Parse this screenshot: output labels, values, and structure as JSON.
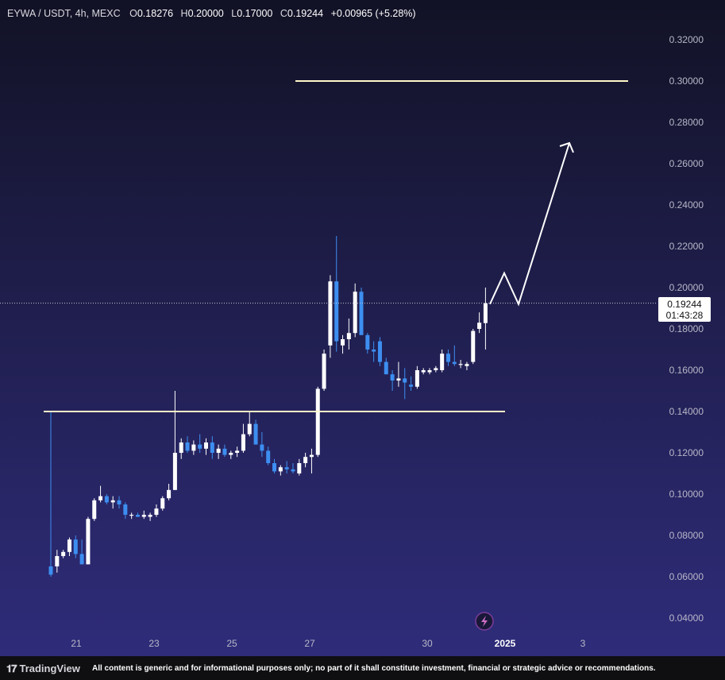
{
  "header": {
    "symbol": "EYWA / USDT, 4h, MEXC",
    "open_label": "O",
    "open": "0.18276",
    "high_label": "H",
    "high": "0.20000",
    "low_label": "L",
    "low": "0.17000",
    "close_label": "C",
    "close": "0.19244",
    "change": "+0.00965 (+5.28%)"
  },
  "price_tag": {
    "price": "0.19244",
    "countdown": "01:43:28"
  },
  "footer": {
    "logo": "TradingView",
    "disclaimer": "All content is generic and for informational purposes only; no part of it shall constitute investment, financial or strategic advice or recommendations."
  },
  "colors": {
    "up": "#ffffff",
    "down": "#3d8ef0",
    "line": "#fff7c8",
    "bg_top": "#121226",
    "bg_bottom": "#2f2c7a"
  },
  "chart_data": {
    "type": "candlestick",
    "y_ticks": [
      "0.32000",
      "0.30000",
      "0.28000",
      "0.26000",
      "0.24000",
      "0.22000",
      "0.20000",
      "0.18000",
      "0.16000",
      "0.14000",
      "0.12000",
      "0.10000",
      "0.08000",
      "0.06000",
      "0.04000"
    ],
    "ylim": [
      0.04,
      0.32
    ],
    "x_ticks": [
      "21",
      "23",
      "25",
      "27",
      "30",
      "2025",
      "3"
    ],
    "last_price": 0.19244,
    "annotations": {
      "resistance_level": 0.3,
      "support_level": 0.14,
      "projection_path": [
        [
          0.192,
          0.192
        ],
        [
          0.207,
          0.207
        ],
        [
          0.192,
          0.192
        ],
        [
          0.27,
          0.27
        ]
      ]
    },
    "candles": [
      {
        "o": 0.065,
        "h": 0.14,
        "l": 0.06,
        "c": 0.061
      },
      {
        "o": 0.065,
        "h": 0.073,
        "l": 0.062,
        "c": 0.07
      },
      {
        "o": 0.07,
        "h": 0.073,
        "l": 0.069,
        "c": 0.072
      },
      {
        "o": 0.072,
        "h": 0.079,
        "l": 0.07,
        "c": 0.078
      },
      {
        "o": 0.078,
        "h": 0.08,
        "l": 0.069,
        "c": 0.071
      },
      {
        "o": 0.071,
        "h": 0.078,
        "l": 0.066,
        "c": 0.066
      },
      {
        "o": 0.066,
        "h": 0.089,
        "l": 0.066,
        "c": 0.088
      },
      {
        "o": 0.088,
        "h": 0.098,
        "l": 0.087,
        "c": 0.097
      },
      {
        "o": 0.097,
        "h": 0.104,
        "l": 0.096,
        "c": 0.099
      },
      {
        "o": 0.099,
        "h": 0.1,
        "l": 0.095,
        "c": 0.096
      },
      {
        "o": 0.096,
        "h": 0.099,
        "l": 0.093,
        "c": 0.097
      },
      {
        "o": 0.097,
        "h": 0.099,
        "l": 0.093,
        "c": 0.095
      },
      {
        "o": 0.095,
        "h": 0.096,
        "l": 0.088,
        "c": 0.09
      },
      {
        "o": 0.09,
        "h": 0.091,
        "l": 0.088,
        "c": 0.09
      },
      {
        "o": 0.09,
        "h": 0.091,
        "l": 0.089,
        "c": 0.089
      },
      {
        "o": 0.089,
        "h": 0.092,
        "l": 0.088,
        "c": 0.09
      },
      {
        "o": 0.089,
        "h": 0.091,
        "l": 0.087,
        "c": 0.09
      },
      {
        "o": 0.09,
        "h": 0.095,
        "l": 0.089,
        "c": 0.093
      },
      {
        "o": 0.093,
        "h": 0.099,
        "l": 0.092,
        "c": 0.098
      },
      {
        "o": 0.098,
        "h": 0.105,
        "l": 0.097,
        "c": 0.102
      },
      {
        "o": 0.102,
        "h": 0.15,
        "l": 0.102,
        "c": 0.12
      },
      {
        "o": 0.12,
        "h": 0.127,
        "l": 0.117,
        "c": 0.125
      },
      {
        "o": 0.125,
        "h": 0.128,
        "l": 0.12,
        "c": 0.121
      },
      {
        "o": 0.121,
        "h": 0.126,
        "l": 0.119,
        "c": 0.124
      },
      {
        "o": 0.124,
        "h": 0.129,
        "l": 0.12,
        "c": 0.122
      },
      {
        "o": 0.122,
        "h": 0.127,
        "l": 0.119,
        "c": 0.125
      },
      {
        "o": 0.125,
        "h": 0.128,
        "l": 0.117,
        "c": 0.12
      },
      {
        "o": 0.12,
        "h": 0.124,
        "l": 0.117,
        "c": 0.122
      },
      {
        "o": 0.122,
        "h": 0.124,
        "l": 0.118,
        "c": 0.119
      },
      {
        "o": 0.119,
        "h": 0.121,
        "l": 0.117,
        "c": 0.12
      },
      {
        "o": 0.12,
        "h": 0.123,
        "l": 0.118,
        "c": 0.121
      },
      {
        "o": 0.121,
        "h": 0.134,
        "l": 0.12,
        "c": 0.129
      },
      {
        "o": 0.129,
        "h": 0.14,
        "l": 0.128,
        "c": 0.134
      },
      {
        "o": 0.134,
        "h": 0.136,
        "l": 0.124,
        "c": 0.124
      },
      {
        "o": 0.124,
        "h": 0.13,
        "l": 0.118,
        "c": 0.121
      },
      {
        "o": 0.121,
        "h": 0.123,
        "l": 0.114,
        "c": 0.115
      },
      {
        "o": 0.115,
        "h": 0.117,
        "l": 0.11,
        "c": 0.111
      },
      {
        "o": 0.111,
        "h": 0.114,
        "l": 0.109,
        "c": 0.113
      },
      {
        "o": 0.113,
        "h": 0.116,
        "l": 0.11,
        "c": 0.112
      },
      {
        "o": 0.112,
        "h": 0.115,
        "l": 0.11,
        "c": 0.111
      },
      {
        "o": 0.11,
        "h": 0.117,
        "l": 0.109,
        "c": 0.115
      },
      {
        "o": 0.115,
        "h": 0.12,
        "l": 0.113,
        "c": 0.118
      },
      {
        "o": 0.118,
        "h": 0.122,
        "l": 0.11,
        "c": 0.119
      },
      {
        "o": 0.119,
        "h": 0.152,
        "l": 0.118,
        "c": 0.151
      },
      {
        "o": 0.151,
        "h": 0.17,
        "l": 0.15,
        "c": 0.168
      },
      {
        "o": 0.172,
        "h": 0.206,
        "l": 0.166,
        "c": 0.203
      },
      {
        "o": 0.203,
        "h": 0.225,
        "l": 0.169,
        "c": 0.174
      },
      {
        "o": 0.172,
        "h": 0.177,
        "l": 0.168,
        "c": 0.175
      },
      {
        "o": 0.175,
        "h": 0.185,
        "l": 0.17,
        "c": 0.178
      },
      {
        "o": 0.178,
        "h": 0.202,
        "l": 0.176,
        "c": 0.198
      },
      {
        "o": 0.198,
        "h": 0.2,
        "l": 0.177,
        "c": 0.177
      },
      {
        "o": 0.177,
        "h": 0.178,
        "l": 0.168,
        "c": 0.17
      },
      {
        "o": 0.17,
        "h": 0.174,
        "l": 0.164,
        "c": 0.169
      },
      {
        "o": 0.174,
        "h": 0.176,
        "l": 0.162,
        "c": 0.164
      },
      {
        "o": 0.164,
        "h": 0.166,
        "l": 0.158,
        "c": 0.158
      },
      {
        "o": 0.158,
        "h": 0.16,
        "l": 0.15,
        "c": 0.155
      },
      {
        "o": 0.155,
        "h": 0.164,
        "l": 0.152,
        "c": 0.156
      },
      {
        "o": 0.156,
        "h": 0.161,
        "l": 0.146,
        "c": 0.154
      },
      {
        "o": 0.153,
        "h": 0.157,
        "l": 0.15,
        "c": 0.152
      },
      {
        "o": 0.152,
        "h": 0.162,
        "l": 0.151,
        "c": 0.16
      },
      {
        "o": 0.159,
        "h": 0.161,
        "l": 0.158,
        "c": 0.16
      },
      {
        "o": 0.159,
        "h": 0.161,
        "l": 0.158,
        "c": 0.16
      },
      {
        "o": 0.16,
        "h": 0.162,
        "l": 0.159,
        "c": 0.161
      },
      {
        "o": 0.16,
        "h": 0.17,
        "l": 0.159,
        "c": 0.168
      },
      {
        "o": 0.168,
        "h": 0.17,
        "l": 0.162,
        "c": 0.164
      },
      {
        "o": 0.164,
        "h": 0.172,
        "l": 0.162,
        "c": 0.163
      },
      {
        "o": 0.163,
        "h": 0.165,
        "l": 0.161,
        "c": 0.163
      },
      {
        "o": 0.162,
        "h": 0.164,
        "l": 0.16,
        "c": 0.163
      },
      {
        "o": 0.164,
        "h": 0.18,
        "l": 0.163,
        "c": 0.179
      },
      {
        "o": 0.18,
        "h": 0.188,
        "l": 0.178,
        "c": 0.183
      },
      {
        "o": 0.1828,
        "h": 0.2,
        "l": 0.17,
        "c": 0.1924
      }
    ]
  }
}
